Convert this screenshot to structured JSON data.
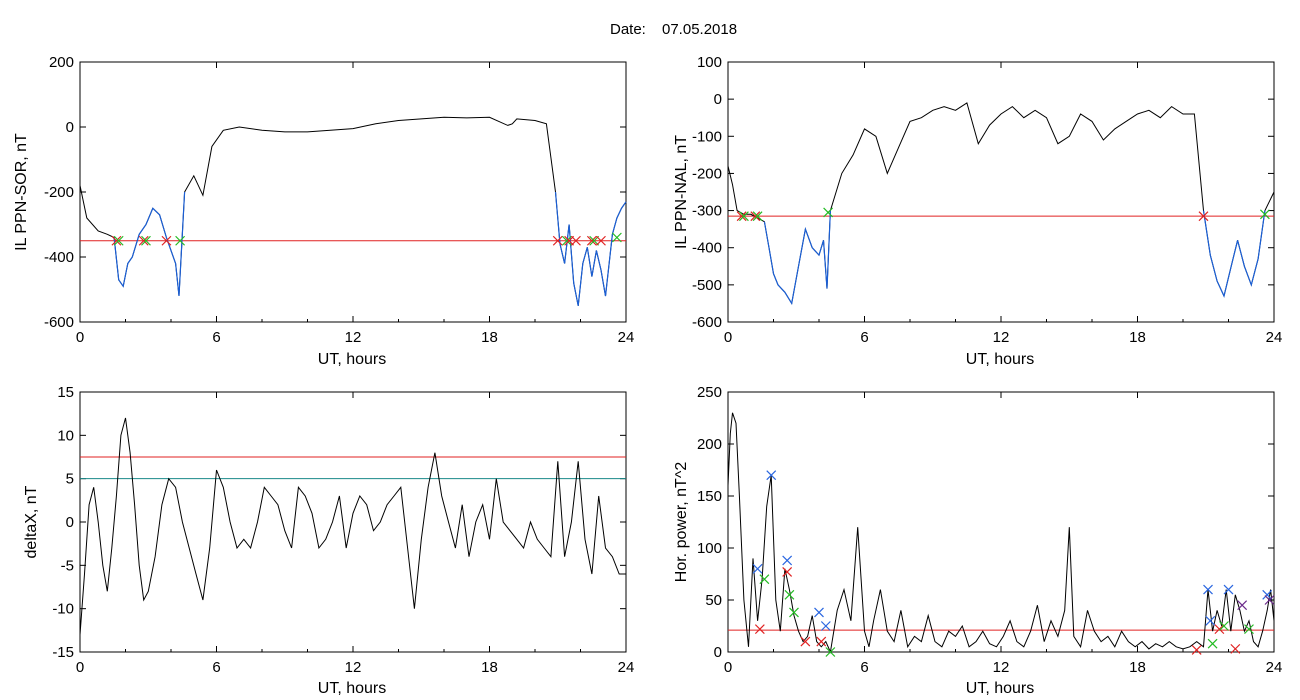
{
  "figure": {
    "title_label": "Date:",
    "title_date": "07.05.2018"
  },
  "colors": {
    "trace": "#000000",
    "below_threshold": "#1a5fd6",
    "threshold_red": "#e02020",
    "threshold_teal": "#1a8a8a",
    "marker_red": "#e02020",
    "marker_green": "#22bb22",
    "marker_blue": "#2a66e0",
    "marker_purple": "#6a2a8a"
  },
  "chart_data": [
    {
      "id": "p1",
      "type": "line",
      "xlabel": "UT, hours",
      "ylabel": "IL PPN-SOR, nT",
      "xlim": [
        0,
        24
      ],
      "ylim": [
        -600,
        200
      ],
      "xticks": [
        0,
        6,
        12,
        18,
        24
      ],
      "yticks": [
        -600,
        -400,
        -200,
        0,
        200
      ],
      "series": [
        {
          "style": "trace",
          "x": [
            0,
            0.3,
            0.8,
            1.2,
            1.5,
            1.7,
            1.9,
            2.1,
            2.3,
            2.6,
            2.9,
            3.2,
            3.5,
            3.8,
            4.0,
            4.2,
            4.35,
            4.6,
            5.0,
            5.4,
            5.8,
            6.3,
            7.0,
            8.0,
            9.0,
            10.0,
            11.0,
            12.0,
            13.0,
            14.0,
            15.0,
            16.0,
            17.0,
            18.0,
            18.8,
            19.0,
            19.2,
            20.0,
            20.5,
            20.9,
            21.1,
            21.3,
            21.5,
            21.7,
            21.9,
            22.1,
            22.3,
            22.5,
            22.7,
            22.9,
            23.1,
            23.4,
            23.6,
            23.8,
            24.0
          ],
          "y": [
            -180,
            -280,
            -320,
            -330,
            -340,
            -470,
            -490,
            -420,
            -400,
            -330,
            -300,
            -250,
            -270,
            -340,
            -380,
            -420,
            -520,
            -200,
            -150,
            -210,
            -60,
            -10,
            0,
            -10,
            -15,
            -15,
            -10,
            -5,
            10,
            20,
            25,
            30,
            28,
            30,
            5,
            10,
            25,
            20,
            10,
            -200,
            -360,
            -420,
            -300,
            -480,
            -550,
            -420,
            -370,
            -460,
            -380,
            -440,
            -520,
            -330,
            -280,
            -250,
            -230
          ]
        }
      ],
      "below_threshold_ranges": [
        [
          1.5,
          4.6
        ],
        [
          20.9,
          24.0
        ]
      ],
      "thresholds": [
        {
          "y": -350,
          "color": "red"
        }
      ],
      "markers": [
        {
          "x": 1.6,
          "y": -350,
          "color": "red"
        },
        {
          "x": 1.7,
          "y": -350,
          "color": "green"
        },
        {
          "x": 2.8,
          "y": -350,
          "color": "red"
        },
        {
          "x": 2.9,
          "y": -350,
          "color": "green"
        },
        {
          "x": 3.8,
          "y": -350,
          "color": "red"
        },
        {
          "x": 4.4,
          "y": -350,
          "color": "green"
        },
        {
          "x": 21.0,
          "y": -350,
          "color": "red"
        },
        {
          "x": 21.4,
          "y": -350,
          "color": "green"
        },
        {
          "x": 21.5,
          "y": -350,
          "color": "red"
        },
        {
          "x": 21.8,
          "y": -350,
          "color": "red"
        },
        {
          "x": 22.5,
          "y": -350,
          "color": "red"
        },
        {
          "x": 22.6,
          "y": -350,
          "color": "green"
        },
        {
          "x": 22.9,
          "y": -350,
          "color": "red"
        },
        {
          "x": 23.6,
          "y": -340,
          "color": "green"
        }
      ]
    },
    {
      "id": "p2",
      "type": "line",
      "xlabel": "UT, hours",
      "ylabel": "IL PPN-NAL, nT",
      "xlim": [
        0,
        24
      ],
      "ylim": [
        -600,
        100
      ],
      "xticks": [
        0,
        6,
        12,
        18,
        24
      ],
      "yticks": [
        -600,
        -500,
        -400,
        -300,
        -200,
        -100,
        0,
        100
      ],
      "series": [
        {
          "style": "trace",
          "x": [
            0,
            0.2,
            0.4,
            0.7,
            1.0,
            1.3,
            1.6,
            1.8,
            2.0,
            2.2,
            2.5,
            2.8,
            3.1,
            3.4,
            3.7,
            4.0,
            4.2,
            4.35,
            4.5,
            5.0,
            5.5,
            6.0,
            6.5,
            7.0,
            7.5,
            8.0,
            8.5,
            9.0,
            9.5,
            10.0,
            10.5,
            11.0,
            11.5,
            12.0,
            12.5,
            13.0,
            13.5,
            14.0,
            14.5,
            15.0,
            15.5,
            16.0,
            16.5,
            17.0,
            17.5,
            18.0,
            18.5,
            19.0,
            19.5,
            20.0,
            20.5,
            20.9,
            21.2,
            21.5,
            21.8,
            22.0,
            22.2,
            22.4,
            22.7,
            23.0,
            23.3,
            23.6,
            24.0
          ],
          "y": [
            -180,
            -230,
            -300,
            -310,
            -310,
            -320,
            -330,
            -400,
            -470,
            -500,
            -520,
            -550,
            -450,
            -350,
            -400,
            -420,
            -380,
            -510,
            -300,
            -200,
            -150,
            -80,
            -100,
            -200,
            -130,
            -60,
            -50,
            -30,
            -20,
            -30,
            -10,
            -120,
            -70,
            -40,
            -20,
            -50,
            -30,
            -50,
            -120,
            -100,
            -40,
            -60,
            -110,
            -80,
            -60,
            -40,
            -30,
            -50,
            -20,
            -40,
            -40,
            -300,
            -420,
            -490,
            -530,
            -480,
            -430,
            -380,
            -450,
            -500,
            -430,
            -300,
            -250
          ]
        }
      ],
      "below_threshold_ranges": [
        [
          1.6,
          4.5
        ],
        [
          20.9,
          23.6
        ]
      ],
      "thresholds": [
        {
          "y": -315,
          "color": "red"
        }
      ],
      "markers": [
        {
          "x": 0.6,
          "y": -315,
          "color": "red"
        },
        {
          "x": 0.7,
          "y": -315,
          "color": "green"
        },
        {
          "x": 1.2,
          "y": -315,
          "color": "red"
        },
        {
          "x": 1.3,
          "y": -315,
          "color": "green"
        },
        {
          "x": 4.4,
          "y": -305,
          "color": "green"
        },
        {
          "x": 20.9,
          "y": -315,
          "color": "red"
        },
        {
          "x": 23.6,
          "y": -310,
          "color": "green"
        }
      ]
    },
    {
      "id": "p3",
      "type": "line",
      "xlabel": "UT, hours",
      "ylabel": "deltaX, nT",
      "xlim": [
        0,
        24
      ],
      "ylim": [
        -15,
        15
      ],
      "xticks": [
        0,
        6,
        12,
        18,
        24
      ],
      "yticks": [
        -15,
        -10,
        -5,
        0,
        5,
        10,
        15
      ],
      "series": [
        {
          "style": "trace",
          "x": [
            0,
            0.2,
            0.4,
            0.6,
            0.8,
            1.0,
            1.2,
            1.4,
            1.6,
            1.8,
            2.0,
            2.2,
            2.4,
            2.6,
            2.8,
            3.0,
            3.3,
            3.6,
            3.9,
            4.2,
            4.5,
            4.8,
            5.1,
            5.4,
            5.7,
            6.0,
            6.3,
            6.6,
            6.9,
            7.2,
            7.5,
            7.8,
            8.1,
            8.4,
            8.7,
            9.0,
            9.3,
            9.6,
            9.9,
            10.2,
            10.5,
            10.8,
            11.1,
            11.4,
            11.7,
            12.0,
            12.3,
            12.6,
            12.9,
            13.2,
            13.5,
            13.8,
            14.1,
            14.4,
            14.7,
            15.0,
            15.3,
            15.6,
            15.9,
            16.2,
            16.5,
            16.8,
            17.1,
            17.4,
            17.7,
            18.0,
            18.3,
            18.6,
            18.9,
            19.2,
            19.5,
            19.8,
            20.1,
            20.4,
            20.7,
            21.0,
            21.3,
            21.6,
            21.9,
            22.2,
            22.5,
            22.8,
            23.1,
            23.4,
            23.7,
            24.0
          ],
          "y": [
            -13,
            -6,
            2,
            4,
            0,
            -5,
            -8,
            -3,
            3,
            10,
            12,
            8,
            2,
            -5,
            -9,
            -8,
            -4,
            2,
            5,
            4,
            0,
            -3,
            -6,
            -9,
            -3,
            6,
            4,
            0,
            -3,
            -2,
            -3,
            0,
            4,
            3,
            2,
            -1,
            -3,
            4,
            3,
            1,
            -3,
            -2,
            0,
            3,
            -3,
            1,
            3,
            2,
            -1,
            0,
            2,
            3,
            4,
            -3,
            -10,
            -2,
            4,
            8,
            3,
            0,
            -3,
            2,
            -4,
            0,
            2,
            -2,
            5,
            0,
            -1,
            -2,
            -3,
            0,
            -2,
            -3,
            -4,
            7,
            -4,
            0,
            7,
            -2,
            -6,
            3,
            -3,
            -4,
            -6,
            -6
          ]
        }
      ],
      "thresholds": [
        {
          "y": 7.5,
          "color": "red"
        },
        {
          "y": 5,
          "color": "teal"
        }
      ],
      "markers": []
    },
    {
      "id": "p4",
      "type": "line",
      "xlabel": "UT, hours",
      "ylabel": "Hor. power, nT^2",
      "xlim": [
        0,
        24
      ],
      "ylim": [
        0,
        250
      ],
      "xticks": [
        0,
        6,
        12,
        18,
        24
      ],
      "yticks": [
        0,
        50,
        100,
        150,
        200,
        250
      ],
      "series": [
        {
          "style": "trace",
          "x": [
            0,
            0.1,
            0.2,
            0.35,
            0.5,
            0.7,
            0.9,
            1.1,
            1.3,
            1.5,
            1.7,
            1.9,
            2.1,
            2.3,
            2.5,
            2.7,
            2.9,
            3.1,
            3.3,
            3.5,
            3.7,
            3.9,
            4.1,
            4.3,
            4.5,
            4.8,
            5.1,
            5.4,
            5.7,
            6.0,
            6.2,
            6.4,
            6.7,
            7.0,
            7.3,
            7.6,
            7.9,
            8.2,
            8.5,
            8.8,
            9.1,
            9.4,
            9.7,
            10.0,
            10.3,
            10.6,
            10.9,
            11.2,
            11.5,
            11.8,
            12.1,
            12.4,
            12.7,
            13.0,
            13.3,
            13.6,
            13.9,
            14.2,
            14.5,
            14.8,
            15.0,
            15.2,
            15.5,
            15.8,
            16.1,
            16.4,
            16.7,
            17.0,
            17.3,
            17.6,
            17.9,
            18.2,
            18.5,
            18.8,
            19.1,
            19.4,
            19.7,
            20.0,
            20.3,
            20.6,
            20.9,
            21.1,
            21.3,
            21.5,
            21.7,
            21.9,
            22.1,
            22.3,
            22.5,
            22.7,
            22.9,
            23.1,
            23.3,
            23.5,
            23.7,
            23.85,
            24.0
          ],
          "y": [
            160,
            210,
            230,
            220,
            150,
            50,
            5,
            90,
            30,
            70,
            140,
            170,
            50,
            20,
            80,
            60,
            35,
            20,
            10,
            15,
            35,
            10,
            5,
            10,
            0,
            40,
            60,
            30,
            120,
            20,
            5,
            30,
            60,
            20,
            10,
            40,
            5,
            15,
            10,
            35,
            10,
            5,
            20,
            15,
            25,
            5,
            10,
            20,
            8,
            5,
            15,
            30,
            10,
            5,
            20,
            45,
            10,
            30,
            15,
            40,
            120,
            15,
            5,
            40,
            20,
            10,
            15,
            5,
            20,
            10,
            5,
            10,
            3,
            8,
            5,
            10,
            5,
            3,
            5,
            10,
            5,
            60,
            20,
            40,
            25,
            60,
            20,
            55,
            40,
            20,
            30,
            10,
            5,
            20,
            40,
            60,
            30
          ]
        }
      ],
      "thresholds": [
        {
          "y": 21,
          "color": "red"
        }
      ],
      "markers": [
        {
          "x": 1.3,
          "y": 80,
          "color": "blue"
        },
        {
          "x": 1.4,
          "y": 22,
          "color": "red"
        },
        {
          "x": 1.6,
          "y": 70,
          "color": "green"
        },
        {
          "x": 1.9,
          "y": 170,
          "color": "blue"
        },
        {
          "x": 2.6,
          "y": 88,
          "color": "blue"
        },
        {
          "x": 2.6,
          "y": 77,
          "color": "red"
        },
        {
          "x": 2.7,
          "y": 55,
          "color": "green"
        },
        {
          "x": 2.9,
          "y": 38,
          "color": "green"
        },
        {
          "x": 3.4,
          "y": 10,
          "color": "red"
        },
        {
          "x": 4.0,
          "y": 38,
          "color": "blue"
        },
        {
          "x": 4.1,
          "y": 10,
          "color": "red"
        },
        {
          "x": 4.3,
          "y": 25,
          "color": "blue"
        },
        {
          "x": 4.5,
          "y": 0,
          "color": "green"
        },
        {
          "x": 21.1,
          "y": 60,
          "color": "blue"
        },
        {
          "x": 21.2,
          "y": 30,
          "color": "blue"
        },
        {
          "x": 21.3,
          "y": 8,
          "color": "green"
        },
        {
          "x": 20.6,
          "y": 2,
          "color": "red"
        },
        {
          "x": 21.6,
          "y": 22,
          "color": "red"
        },
        {
          "x": 21.8,
          "y": 25,
          "color": "green"
        },
        {
          "x": 22.0,
          "y": 60,
          "color": "blue"
        },
        {
          "x": 22.3,
          "y": 3,
          "color": "red"
        },
        {
          "x": 22.6,
          "y": 45,
          "color": "purple"
        },
        {
          "x": 22.9,
          "y": 22,
          "color": "green"
        },
        {
          "x": 23.7,
          "y": 55,
          "color": "blue"
        },
        {
          "x": 23.8,
          "y": 50,
          "color": "purple"
        }
      ]
    }
  ]
}
